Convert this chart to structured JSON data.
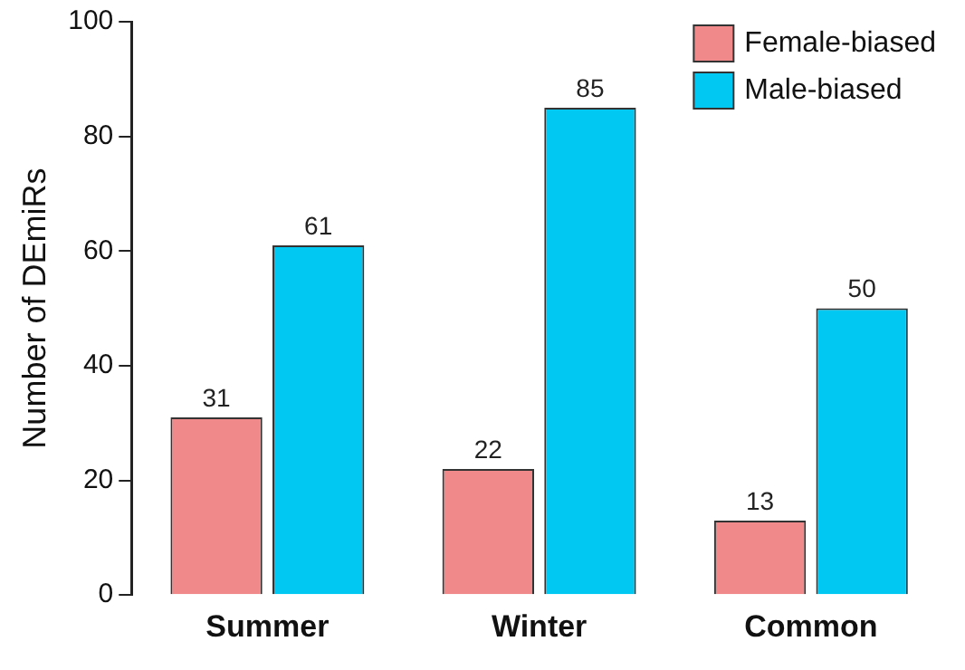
{
  "chart_data": {
    "type": "bar",
    "categories": [
      "Summer",
      "Winter",
      "Common"
    ],
    "series": [
      {
        "name": "Female-biased",
        "color": "#f08a8a",
        "values": [
          31,
          22,
          13
        ]
      },
      {
        "name": "Male-biased",
        "color": "#00c8f2",
        "values": [
          61,
          85,
          50
        ]
      }
    ],
    "ylabel": "Number of DEmiRs",
    "ylim": [
      0,
      100
    ],
    "yticks": [
      0,
      20,
      40,
      60,
      80,
      100
    ],
    "grid": false,
    "legend": "top right",
    "data_labels": true
  }
}
